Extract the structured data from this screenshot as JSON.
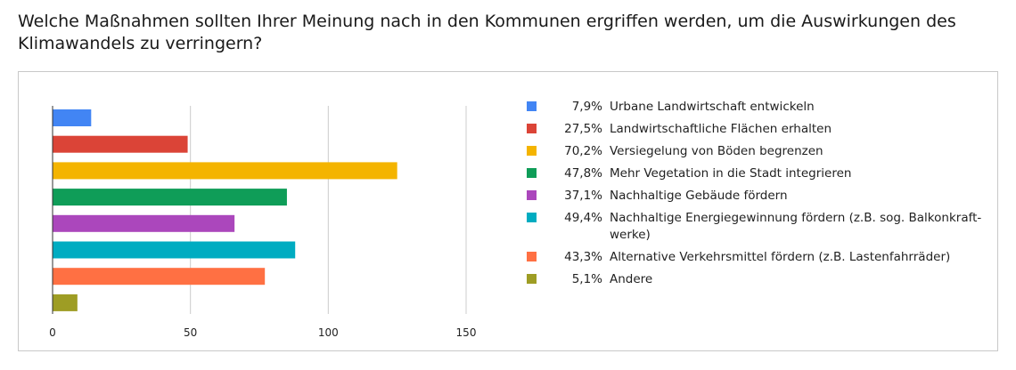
{
  "question": "Welche Maßnahmen sollten Ihrer Meinung nach in den Kommunen ergriffen werden, um die Auswirkungen des Klimawandels zu verringern?",
  "chart_data": {
    "type": "bar",
    "orientation": "horizontal",
    "xlim": [
      0,
      150
    ],
    "xticks": [
      "0",
      "50",
      "100",
      "150"
    ],
    "grid": true,
    "legend_position": "right",
    "categories": [
      {
        "pct": "7,9%",
        "label": "Urbane Landwirtschaft entwickeln",
        "value": 14,
        "color": "#4285f4"
      },
      {
        "pct": "27,5%",
        "label": "Landwirtschaftliche Flächen erhalten",
        "value": 49,
        "color": "#db4437"
      },
      {
        "pct": "70,2%",
        "label": "Versiegelung von Böden begrenzen",
        "value": 125,
        "color": "#f4b400"
      },
      {
        "pct": "47,8%",
        "label": "Mehr Vegetation in die Stadt integrieren",
        "value": 85,
        "color": "#0f9d58"
      },
      {
        "pct": "37,1%",
        "label": "Nachhaltige Gebäude fördern",
        "value": 66,
        "color": "#ab47bc"
      },
      {
        "pct": "49,4%",
        "label": "Nachhaltige Energiegewinnung fördern (z.B. sog. Balkonkraft-werke)",
        "value": 88,
        "color": "#00acc1"
      },
      {
        "pct": "43,3%",
        "label": "Alternative Verkehrsmittel fördern (z.B. Lastenfahrräder)",
        "value": 77,
        "color": "#ff7043"
      },
      {
        "pct": "5,1%",
        "label": "Andere",
        "value": 9,
        "color": "#9e9d24"
      }
    ]
  }
}
